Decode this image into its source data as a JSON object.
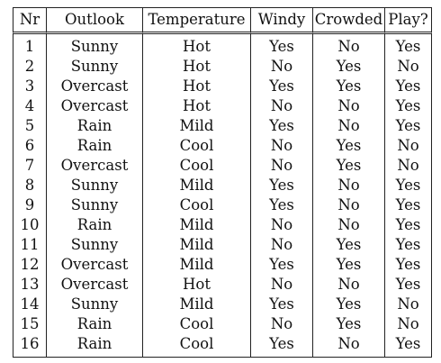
{
  "table": {
    "headers": [
      "Nr",
      "Outlook",
      "Temperature",
      "Windy",
      "Crowded",
      "Play?"
    ],
    "rows": [
      [
        "1",
        "Sunny",
        "Hot",
        "Yes",
        "No",
        "Yes"
      ],
      [
        "2",
        "Sunny",
        "Hot",
        "No",
        "Yes",
        "No"
      ],
      [
        "3",
        "Overcast",
        "Hot",
        "Yes",
        "Yes",
        "Yes"
      ],
      [
        "4",
        "Overcast",
        "Hot",
        "No",
        "No",
        "Yes"
      ],
      [
        "5",
        "Rain",
        "Mild",
        "Yes",
        "No",
        "Yes"
      ],
      [
        "6",
        "Rain",
        "Cool",
        "No",
        "Yes",
        "No"
      ],
      [
        "7",
        "Overcast",
        "Cool",
        "No",
        "Yes",
        "No"
      ],
      [
        "8",
        "Sunny",
        "Mild",
        "Yes",
        "No",
        "Yes"
      ],
      [
        "9",
        "Sunny",
        "Cool",
        "Yes",
        "No",
        "Yes"
      ],
      [
        "10",
        "Rain",
        "Mild",
        "No",
        "No",
        "Yes"
      ],
      [
        "11",
        "Sunny",
        "Mild",
        "No",
        "Yes",
        "Yes"
      ],
      [
        "12",
        "Overcast",
        "Mild",
        "Yes",
        "Yes",
        "Yes"
      ],
      [
        "13",
        "Overcast",
        "Hot",
        "No",
        "No",
        "Yes"
      ],
      [
        "14",
        "Sunny",
        "Mild",
        "Yes",
        "Yes",
        "No"
      ],
      [
        "15",
        "Rain",
        "Cool",
        "No",
        "Yes",
        "No"
      ],
      [
        "16",
        "Rain",
        "Cool",
        "Yes",
        "No",
        "Yes"
      ]
    ]
  }
}
